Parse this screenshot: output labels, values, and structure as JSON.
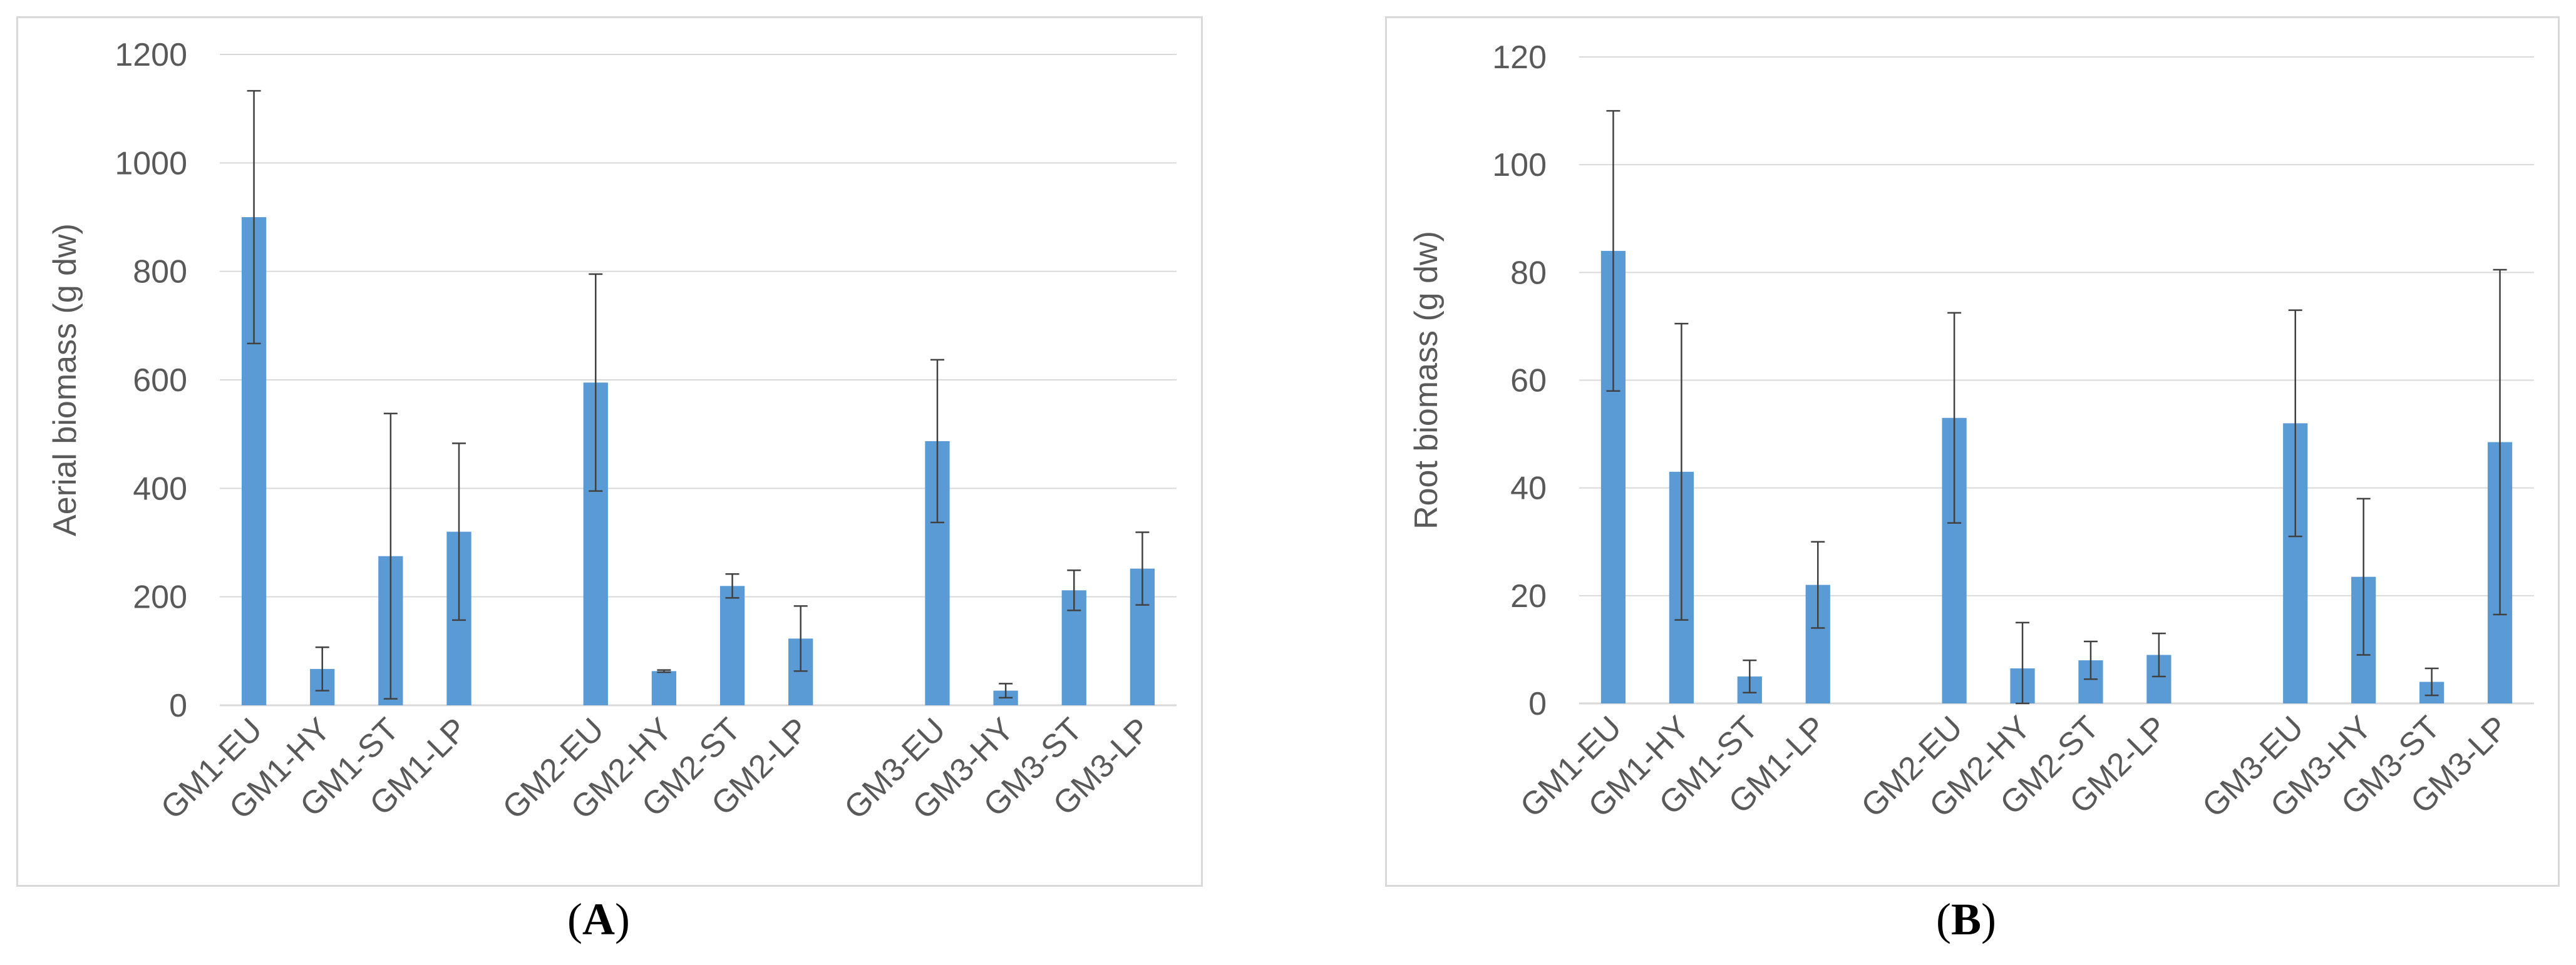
{
  "chart_data": [
    {
      "type": "bar",
      "panel_label": "A",
      "ylabel": "Aerial biomass (g dw)",
      "xlabel": "",
      "ylim": [
        0,
        1200
      ],
      "yticks": [
        0,
        200,
        400,
        600,
        800,
        1000,
        1200
      ],
      "grid": true,
      "bar_color": "#5b9bd5",
      "groups": [
        {
          "categories": [
            "GM1-EU",
            "GM1-HY",
            "GM1-ST",
            "GM1-LP"
          ],
          "values": [
            900,
            67,
            275,
            320
          ],
          "errors": [
            233,
            40,
            263,
            163
          ]
        },
        {
          "categories": [
            "GM2-EU",
            "GM2-HY",
            "GM2-ST",
            "GM2-LP"
          ],
          "values": [
            595,
            63,
            220,
            123
          ],
          "errors": [
            200,
            2,
            22,
            60
          ]
        },
        {
          "categories": [
            "GM3-EU",
            "GM3-HY",
            "GM3-ST",
            "GM3-LP"
          ],
          "values": [
            487,
            27,
            212,
            252
          ],
          "errors": [
            150,
            13,
            37,
            67
          ]
        }
      ]
    },
    {
      "type": "bar",
      "panel_label": "B",
      "ylabel": "Root biomass (g dw)",
      "xlabel": "",
      "ylim": [
        0,
        120
      ],
      "yticks": [
        0,
        20,
        40,
        60,
        80,
        100,
        120
      ],
      "grid": true,
      "bar_color": "#5b9bd5",
      "groups": [
        {
          "categories": [
            "GM1-EU",
            "GM1-HY",
            "GM1-ST",
            "GM1-LP"
          ],
          "values": [
            84,
            43,
            5,
            22
          ],
          "errors": [
            26,
            27.5,
            3,
            8
          ]
        },
        {
          "categories": [
            "GM2-EU",
            "GM2-HY",
            "GM2-ST",
            "GM2-LP"
          ],
          "values": [
            53,
            6.5,
            8,
            9
          ],
          "errors": [
            19.5,
            8.5,
            3.5,
            4
          ]
        },
        {
          "categories": [
            "GM3-EU",
            "GM3-HY",
            "GM3-ST",
            "GM3-LP"
          ],
          "values": [
            52,
            23.5,
            4,
            48.5
          ],
          "errors": [
            21,
            14.5,
            2.5,
            32
          ]
        }
      ]
    }
  ],
  "captions": {
    "a": {
      "open": "(",
      "label": "A",
      "close": ")"
    },
    "b": {
      "open": "(",
      "label": "B",
      "close": ")"
    }
  }
}
